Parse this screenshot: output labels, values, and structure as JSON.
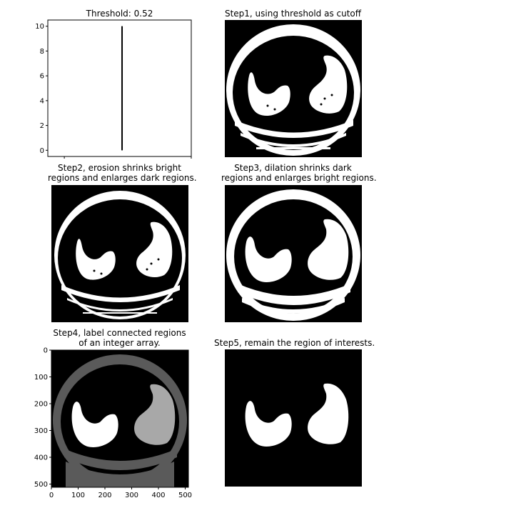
{
  "figure": {
    "panels": [
      {
        "title": "Threshold: 0.52"
      },
      {
        "title": "Step1, using threshold as cutoff"
      },
      {
        "title_lines": [
          "Step2, erosion shrinks bright",
          "regions and enlarges dark regions."
        ]
      },
      {
        "title_lines": [
          "Step3, dilation shrinks dark",
          "regions and enlarges bright regions."
        ]
      },
      {
        "title_lines": [
          "Step4, label connected regions",
          "of an integer array."
        ]
      },
      {
        "title": "Step5, remain the region of interests."
      }
    ],
    "colors": {
      "background": "#000000",
      "bright": "#ffffff",
      "label_outer": "#5a5a5a",
      "label_lung_right": "#a8a8a8"
    }
  },
  "chart_data": [
    {
      "type": "line",
      "title": "Threshold: 0.52",
      "series": [
        {
          "x": [
            0.52,
            0.52
          ],
          "y": [
            0,
            10
          ]
        }
      ],
      "xlim": [
        0,
        1
      ],
      "ylim": [
        -0.5,
        10.5
      ],
      "yticks": [
        "0",
        "2",
        "4",
        "6",
        "8",
        "10"
      ],
      "grid": false
    },
    {
      "type": "heatmap",
      "title": "Step4, label connected regions of an integer array.",
      "xticks": [
        "0",
        "100",
        "200",
        "300",
        "400",
        "500"
      ],
      "yticks": [
        "0",
        "100",
        "200",
        "300",
        "400",
        "500"
      ],
      "xlim": [
        0,
        512
      ],
      "ylim": [
        512,
        0
      ]
    }
  ]
}
